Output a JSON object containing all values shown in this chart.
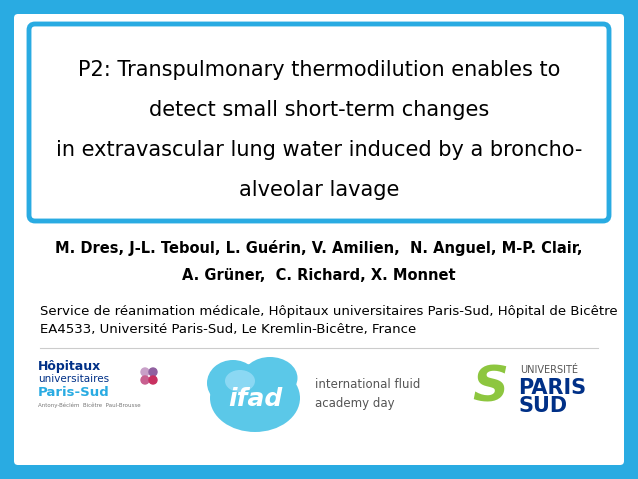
{
  "background_color": "#29abe2",
  "slide_bg": "#ffffff",
  "title_box_border_color": "#29abe2",
  "title_text_line1": "P2: Transpulmonary thermodilution enables to",
  "title_text_line2": "detect small short-term changes",
  "title_text_line3": "in extravascular lung water induced by a broncho-",
  "title_text_line4": "alveolar lavage",
  "authors_underline": "M. Dres",
  "authors_plain": ", J-L. Teboul, L. Guérin, V. Amilien,  N. Anguel, M-P. Clair,",
  "authors_line2": "A. Grüner,  C. Richard, X. Monnet",
  "institution_line1": "Service de réanimation médicale, Hôpitaux universitaires Paris-Sud, Hôpital de Bicêtre",
  "institution_line2": "EA4533, Université Paris-Sud, Le Kremlin-Bicêtre, France",
  "title_fontsize": 15,
  "authors_fontsize": 10.5,
  "institution_fontsize": 9.5,
  "text_color": "#000000",
  "border_color": "#29abe2",
  "logo1_text1": "Hôpitaux",
  "logo1_text2": "universitaires",
  "logo1_text3": "Paris-Sud",
  "logo1_text4": "Antony-Béclém  Bicêtre  Paul-Brousse",
  "logo2_text1": "ifad",
  "logo2_text2": "international fluid",
  "logo2_text3": "academy day",
  "logo3_text1": "UNIVERSITÉ",
  "logo3_text2": "PARIS",
  "logo3_text3": "SUD"
}
